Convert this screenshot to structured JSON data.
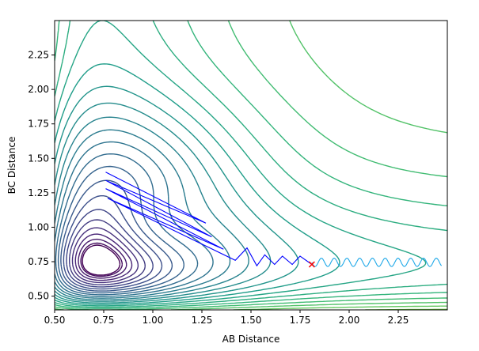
{
  "chart_data": {
    "type": "contour",
    "xlabel": "AB Distance",
    "ylabel": "BC Distance",
    "xlim": [
      0.5,
      2.5
    ],
    "ylim": [
      0.4,
      2.5
    ],
    "xticks": [
      "0.50",
      "0.75",
      "1.00",
      "1.25",
      "1.50",
      "1.75",
      "2.00",
      "2.25"
    ],
    "yticks": [
      "0.50",
      "0.75",
      "1.00",
      "1.25",
      "1.50",
      "1.75",
      "2.00",
      "2.25"
    ],
    "grid": false,
    "colormap": "viridis",
    "contour_levels": 30,
    "trajectory": {
      "color_start": "#0000ff",
      "color_end": "#1ea8e8",
      "start": [
        0.76,
        1.4
      ],
      "end": [
        2.47,
        0.74
      ]
    },
    "marker": {
      "symbol": "x",
      "color": "#ff0000",
      "x": 1.81,
      "y": 0.73
    }
  }
}
